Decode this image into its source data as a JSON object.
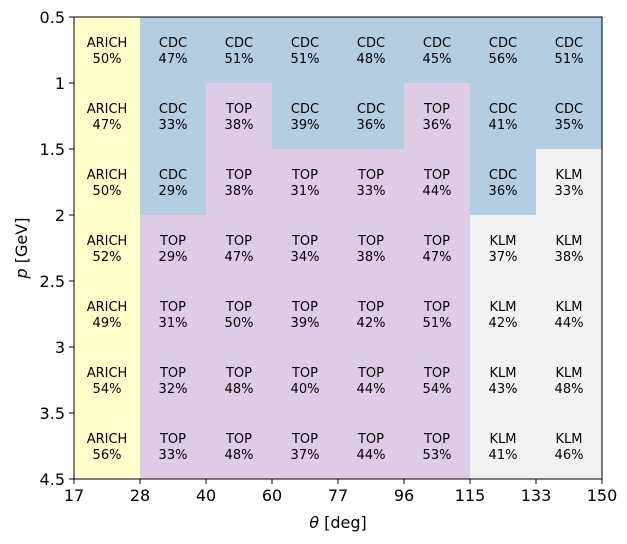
{
  "chart_data": {
    "type": "heatmap",
    "xlabel": "θ [deg]",
    "ylabel": "p [GeV]",
    "x_ticks": [
      "17",
      "28",
      "40",
      "60",
      "77",
      "96",
      "115",
      "133",
      "150"
    ],
    "y_ticks": [
      "0.5",
      "1",
      "1.5",
      "2",
      "2.5",
      "3",
      "3.5",
      "4.5"
    ],
    "colors": {
      "ARICH": "#ffffcc",
      "CDC": "#b3cde3",
      "TOP": "#decbe4",
      "KLM": "#f2f2f2"
    },
    "rows": [
      {
        "cells": [
          {
            "detector": "ARICH",
            "percent": "50%"
          },
          {
            "detector": "CDC",
            "percent": "47%"
          },
          {
            "detector": "CDC",
            "percent": "51%"
          },
          {
            "detector": "CDC",
            "percent": "51%"
          },
          {
            "detector": "CDC",
            "percent": "48%"
          },
          {
            "detector": "CDC",
            "percent": "45%"
          },
          {
            "detector": "CDC",
            "percent": "56%"
          },
          {
            "detector": "CDC",
            "percent": "51%"
          }
        ]
      },
      {
        "cells": [
          {
            "detector": "ARICH",
            "percent": "47%"
          },
          {
            "detector": "CDC",
            "percent": "33%"
          },
          {
            "detector": "TOP",
            "percent": "38%"
          },
          {
            "detector": "CDC",
            "percent": "39%"
          },
          {
            "detector": "CDC",
            "percent": "36%"
          },
          {
            "detector": "TOP",
            "percent": "36%"
          },
          {
            "detector": "CDC",
            "percent": "41%"
          },
          {
            "detector": "CDC",
            "percent": "35%"
          }
        ]
      },
      {
        "cells": [
          {
            "detector": "ARICH",
            "percent": "50%"
          },
          {
            "detector": "CDC",
            "percent": "29%"
          },
          {
            "detector": "TOP",
            "percent": "38%"
          },
          {
            "detector": "TOP",
            "percent": "31%"
          },
          {
            "detector": "TOP",
            "percent": "33%"
          },
          {
            "detector": "TOP",
            "percent": "44%"
          },
          {
            "detector": "CDC",
            "percent": "36%"
          },
          {
            "detector": "KLM",
            "percent": "33%"
          }
        ]
      },
      {
        "cells": [
          {
            "detector": "ARICH",
            "percent": "52%"
          },
          {
            "detector": "TOP",
            "percent": "29%"
          },
          {
            "detector": "TOP",
            "percent": "47%"
          },
          {
            "detector": "TOP",
            "percent": "34%"
          },
          {
            "detector": "TOP",
            "percent": "38%"
          },
          {
            "detector": "TOP",
            "percent": "47%"
          },
          {
            "detector": "KLM",
            "percent": "37%"
          },
          {
            "detector": "KLM",
            "percent": "38%"
          }
        ]
      },
      {
        "cells": [
          {
            "detector": "ARICH",
            "percent": "49%"
          },
          {
            "detector": "TOP",
            "percent": "31%"
          },
          {
            "detector": "TOP",
            "percent": "50%"
          },
          {
            "detector": "TOP",
            "percent": "39%"
          },
          {
            "detector": "TOP",
            "percent": "42%"
          },
          {
            "detector": "TOP",
            "percent": "51%"
          },
          {
            "detector": "KLM",
            "percent": "42%"
          },
          {
            "detector": "KLM",
            "percent": "44%"
          }
        ]
      },
      {
        "cells": [
          {
            "detector": "ARICH",
            "percent": "54%"
          },
          {
            "detector": "TOP",
            "percent": "32%"
          },
          {
            "detector": "TOP",
            "percent": "48%"
          },
          {
            "detector": "TOP",
            "percent": "40%"
          },
          {
            "detector": "TOP",
            "percent": "44%"
          },
          {
            "detector": "TOP",
            "percent": "54%"
          },
          {
            "detector": "KLM",
            "percent": "43%"
          },
          {
            "detector": "KLM",
            "percent": "48%"
          }
        ]
      },
      {
        "cells": [
          {
            "detector": "ARICH",
            "percent": "56%"
          },
          {
            "detector": "TOP",
            "percent": "33%"
          },
          {
            "detector": "TOP",
            "percent": "48%"
          },
          {
            "detector": "TOP",
            "percent": "37%"
          },
          {
            "detector": "TOP",
            "percent": "44%"
          },
          {
            "detector": "TOP",
            "percent": "53%"
          },
          {
            "detector": "KLM",
            "percent": "41%"
          },
          {
            "detector": "KLM",
            "percent": "46%"
          }
        ]
      }
    ]
  }
}
